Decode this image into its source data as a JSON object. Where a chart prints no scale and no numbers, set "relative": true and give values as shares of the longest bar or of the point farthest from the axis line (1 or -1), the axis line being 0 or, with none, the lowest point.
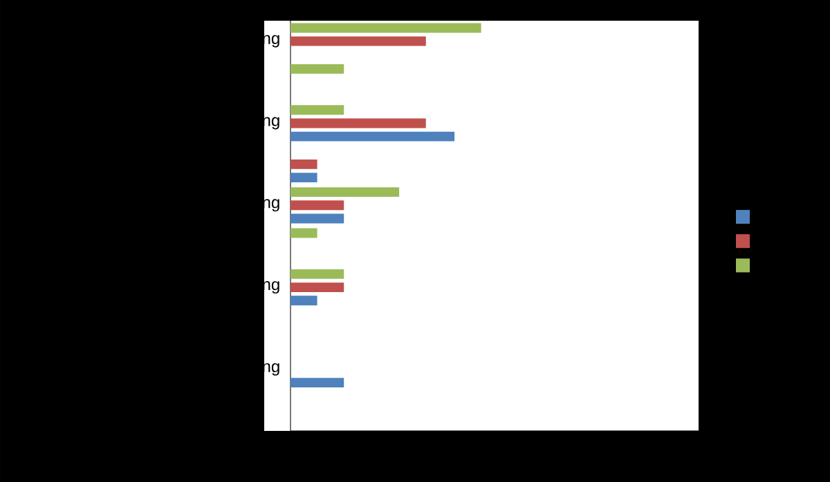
{
  "chart_data": {
    "type": "bar",
    "orientation": "horizontal",
    "relative": true,
    "categories": [
      "ng",
      null,
      "ng",
      null,
      "ng",
      null,
      "ng",
      null,
      "ng",
      null
    ],
    "series": [
      {
        "color": "#4f81bd",
        "values": [
          null,
          null,
          0.86,
          0.14,
          0.28,
          null,
          0.14,
          null,
          0.28,
          null
        ]
      },
      {
        "color": "#c0504d",
        "values": [
          0.71,
          null,
          0.71,
          0.14,
          0.28,
          null,
          0.28,
          null,
          null,
          null
        ]
      },
      {
        "color": "#9bbb59",
        "values": [
          1.0,
          0.28,
          0.28,
          null,
          0.57,
          0.14,
          0.28,
          null,
          null,
          null
        ]
      }
    ]
  }
}
